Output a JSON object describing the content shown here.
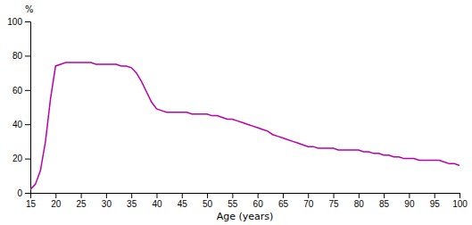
{
  "chart_data": {
    "type": "line",
    "xlabel": "Age (years)",
    "ylabel": "%",
    "x": [
      15,
      16,
      17,
      18,
      19,
      20,
      21,
      22,
      23,
      24,
      25,
      26,
      27,
      28,
      29,
      30,
      31,
      32,
      33,
      34,
      35,
      36,
      37,
      38,
      39,
      40,
      41,
      42,
      43,
      44,
      45,
      46,
      47,
      48,
      49,
      50,
      51,
      52,
      53,
      54,
      55,
      56,
      57,
      58,
      59,
      60,
      61,
      62,
      63,
      64,
      65,
      66,
      67,
      68,
      69,
      70,
      71,
      72,
      73,
      74,
      75,
      76,
      77,
      78,
      79,
      80,
      81,
      82,
      83,
      84,
      85,
      86,
      87,
      88,
      89,
      90,
      91,
      92,
      93,
      94,
      95,
      96,
      97,
      98,
      99,
      100
    ],
    "values": [
      2,
      5,
      13,
      30,
      55,
      74,
      75,
      76,
      76,
      76,
      76,
      76,
      76,
      75,
      75,
      75,
      75,
      75,
      74,
      74,
      73,
      70,
      65,
      59,
      53,
      49,
      48,
      47,
      47,
      47,
      47,
      47,
      46,
      46,
      46,
      46,
      45,
      45,
      44,
      43,
      43,
      42,
      41,
      40,
      39,
      38,
      37,
      36,
      34,
      33,
      32,
      31,
      30,
      29,
      28,
      27,
      27,
      26,
      26,
      26,
      26,
      25,
      25,
      25,
      25,
      25,
      24,
      24,
      23,
      23,
      22,
      22,
      21,
      21,
      20,
      20,
      20,
      19,
      19,
      19,
      19,
      19,
      18,
      17,
      17,
      16
    ],
    "color": "#BB00AA",
    "xlim": [
      15,
      100
    ],
    "ylim": [
      0,
      100
    ],
    "xticks": [
      15,
      20,
      25,
      30,
      35,
      40,
      45,
      50,
      55,
      60,
      65,
      70,
      75,
      80,
      85,
      90,
      95,
      100
    ],
    "yticks": [
      0,
      20,
      40,
      60,
      80,
      100
    ],
    "grid": false
  }
}
